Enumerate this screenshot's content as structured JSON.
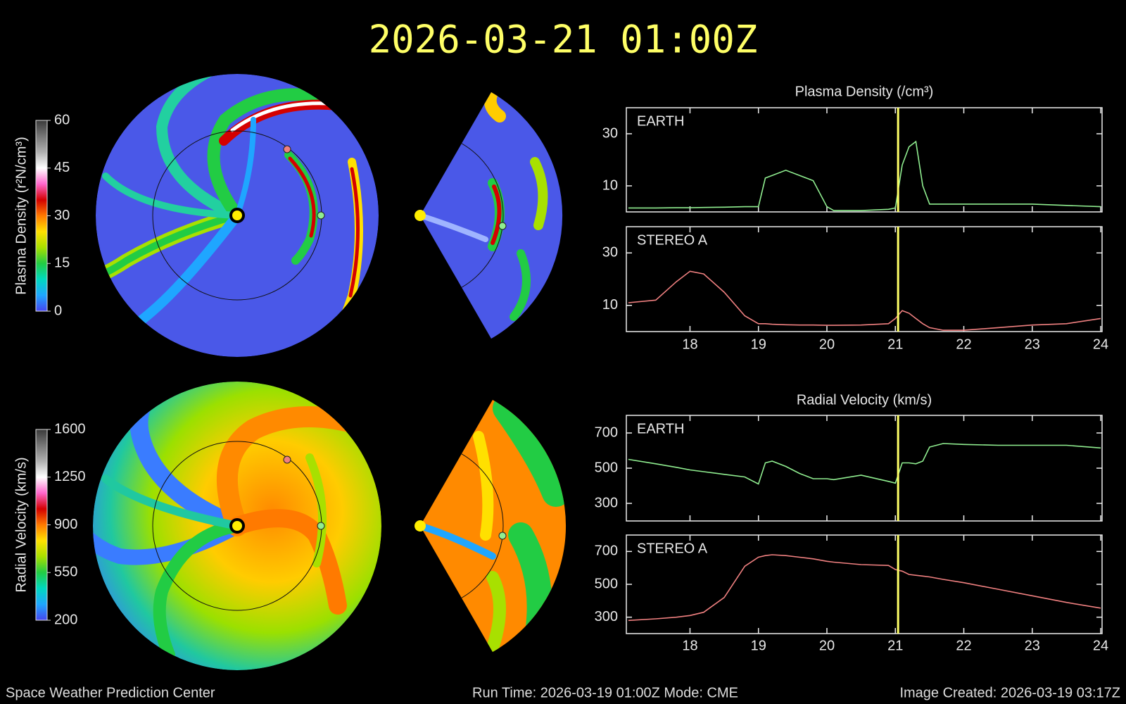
{
  "header": {
    "title": "2026-03-21 01:00Z"
  },
  "footer": {
    "left": "Space Weather Prediction Center",
    "center": "Run Time: 2026-03-19 01:00Z  Mode: CME",
    "right": "Image Created: 2026-03-19 03:17Z"
  },
  "chart_data": [
    {
      "type": "colorbar",
      "label": "Plasma Density (r²N/cm³)",
      "ylim": [
        0,
        60
      ],
      "yticks": [
        0,
        15,
        30,
        45,
        60
      ],
      "colors": [
        "#4646f0",
        "#1fa6ff",
        "#00d8c0",
        "#22cc44",
        "#a8e000",
        "#ffe000",
        "#ff7a00",
        "#d40000",
        "#ff66cc",
        "#ffffff",
        "#b0b0b0",
        "#777777",
        "#3a3a3a"
      ]
    },
    {
      "type": "colorbar",
      "label": "Radial Velocity (km/s)",
      "ylim": [
        200,
        1600
      ],
      "yticks": [
        200,
        550,
        900,
        1250,
        1600
      ],
      "colors": [
        "#4646f0",
        "#1fa6ff",
        "#00d8c0",
        "#22cc44",
        "#a8e000",
        "#ffe000",
        "#ff7a00",
        "#d40000",
        "#ff66cc",
        "#ffffff",
        "#b0b0b0",
        "#777777",
        "#3a3a3a"
      ]
    },
    {
      "type": "line",
      "title": "Plasma Density (/cm³)",
      "x": [
        17.1,
        17.5,
        17.8,
        18,
        18.2,
        18.5,
        18.8,
        19,
        19.1,
        19.2,
        19.4,
        19.6,
        19.8,
        20,
        20.1,
        20.5,
        20.9,
        21,
        21.1,
        21.2,
        21.3,
        21.4,
        21.5,
        21.7,
        22,
        22.5,
        23,
        23.5,
        24
      ],
      "xlim": [
        17.07,
        24.02
      ],
      "xticks": [
        18,
        19,
        20,
        21,
        22,
        23,
        24
      ],
      "ylim": [
        0,
        40
      ],
      "yticks": [
        10,
        30
      ],
      "marker_x": 21.04,
      "marker_color": "#ffff66",
      "series": [
        {
          "name": "EARTH",
          "color": "#90ee90",
          "values": [
            1.5,
            1.5,
            1.6,
            1.6,
            1.7,
            1.8,
            2,
            2,
            13,
            14,
            16,
            14,
            12,
            2,
            0.5,
            0.5,
            1,
            1.5,
            18,
            25,
            27,
            10,
            3,
            3,
            3,
            3,
            3,
            2.5,
            2
          ]
        },
        {
          "name": "STEREO A",
          "color": "#f08080",
          "values": [
            11,
            12,
            19,
            23,
            22,
            15,
            6,
            3,
            3,
            2.8,
            2.6,
            2.5,
            2.5,
            2.4,
            2.4,
            2.5,
            3,
            5,
            8,
            7,
            5,
            3,
            1.5,
            0.5,
            0.5,
            1.5,
            2.5,
            3,
            5
          ]
        }
      ]
    },
    {
      "type": "line",
      "title": "Radial Velocity (km/s)",
      "x": [
        17.1,
        17.5,
        17.8,
        18,
        18.2,
        18.5,
        18.8,
        19,
        19.1,
        19.2,
        19.4,
        19.6,
        19.8,
        20,
        20.1,
        20.5,
        20.9,
        21,
        21.1,
        21.2,
        21.3,
        21.4,
        21.5,
        21.7,
        22,
        22.5,
        23,
        23.5,
        24
      ],
      "xlim": [
        17.07,
        24.02
      ],
      "xticks": [
        18,
        19,
        20,
        21,
        22,
        23,
        24
      ],
      "ylim": [
        200,
        800
      ],
      "yticks": [
        300,
        500,
        700
      ],
      "marker_x": 21.04,
      "marker_color": "#ffff66",
      "series": [
        {
          "name": "EARTH",
          "color": "#90ee90",
          "values": [
            550,
            525,
            505,
            490,
            480,
            465,
            450,
            410,
            530,
            540,
            510,
            470,
            440,
            440,
            435,
            460,
            425,
            415,
            530,
            530,
            525,
            540,
            620,
            640,
            635,
            630,
            630,
            630,
            615
          ]
        },
        {
          "name": "STEREO A",
          "color": "#f08080",
          "values": [
            280,
            290,
            300,
            310,
            330,
            420,
            610,
            665,
            675,
            680,
            675,
            665,
            655,
            640,
            635,
            620,
            615,
            590,
            580,
            560,
            555,
            550,
            545,
            530,
            510,
            470,
            430,
            390,
            355
          ]
        }
      ]
    }
  ]
}
